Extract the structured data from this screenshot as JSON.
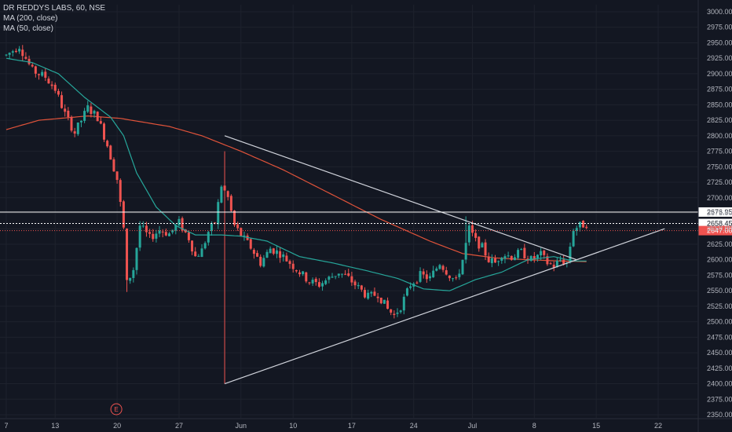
{
  "chart_title": "DR REDDYS LABS, 60, NSE",
  "indicators": [
    "MA (200, close)",
    "MA (50, close)"
  ],
  "colors": {
    "background": "#131722",
    "grid": "#1e222d",
    "up": "#26a69a",
    "down": "#ef5350",
    "ma200": "#e0533a",
    "ma50": "#26a69a",
    "trendline": "#d1d4dc",
    "level": "#ffffff",
    "price_tag": "#ef5350"
  },
  "event_marker": "E",
  "chart_data": {
    "type": "candlestick",
    "title": "DR REDDYS LABS, 60, NSE",
    "ylim": [
      2345,
      3010
    ],
    "y_ticks": [
      2350,
      2375,
      2400,
      2425,
      2450,
      2475,
      2500,
      2525,
      2550,
      2575,
      2600,
      2625,
      2650,
      2675,
      2700,
      2725,
      2750,
      2775,
      2800,
      2825,
      2850,
      2875,
      2900,
      2925,
      2950,
      2975,
      3000
    ],
    "x_ticks": [
      "7",
      "13",
      "20",
      "27",
      "Jun",
      "10",
      "17",
      "24",
      "Jul",
      "8",
      "15",
      "22"
    ],
    "grid": true,
    "price_levels": [
      {
        "label": "2676.95",
        "value": 2676.95,
        "style": "solid"
      },
      {
        "label": "2658.45",
        "value": 2658.45,
        "style": "dashed"
      },
      {
        "label": "2647.00",
        "value": 2647.0,
        "style": "current"
      }
    ],
    "price_path": [
      [
        0,
        2930
      ],
      [
        4,
        2945
      ],
      [
        8,
        2905
      ],
      [
        12,
        2895
      ],
      [
        15,
        2875
      ],
      [
        18,
        2835
      ],
      [
        21,
        2805
      ],
      [
        25,
        2845
      ],
      [
        28,
        2830
      ],
      [
        31,
        2785
      ],
      [
        34,
        2730
      ],
      [
        36,
        2650
      ],
      [
        37,
        2562
      ],
      [
        39,
        2585
      ],
      [
        41,
        2655
      ],
      [
        44,
        2635
      ],
      [
        47,
        2648
      ],
      [
        50,
        2642
      ],
      [
        53,
        2660
      ],
      [
        56,
        2635
      ],
      [
        58,
        2605
      ],
      [
        60,
        2615
      ],
      [
        62,
        2645
      ],
      [
        64,
        2660
      ],
      [
        66,
        2720
      ],
      [
        68,
        2700
      ],
      [
        70,
        2655
      ],
      [
        72,
        2640
      ],
      [
        75,
        2620
      ],
      [
        78,
        2595
      ],
      [
        81,
        2618
      ],
      [
        84,
        2610
      ],
      [
        87,
        2595
      ],
      [
        90,
        2580
      ],
      [
        93,
        2565
      ],
      [
        96,
        2560
      ],
      [
        99,
        2570
      ],
      [
        102,
        2580
      ],
      [
        105,
        2570
      ],
      [
        108,
        2555
      ],
      [
        111,
        2540
      ],
      [
        114,
        2545
      ],
      [
        117,
        2520
      ],
      [
        119,
        2510
      ],
      [
        121,
        2525
      ],
      [
        124,
        2560
      ],
      [
        127,
        2575
      ],
      [
        130,
        2570
      ],
      [
        133,
        2595
      ],
      [
        136,
        2575
      ],
      [
        138,
        2565
      ],
      [
        140,
        2600
      ],
      [
        142,
        2650
      ],
      [
        144,
        2630
      ],
      [
        146,
        2620
      ],
      [
        148,
        2600
      ],
      [
        150,
        2595
      ],
      [
        152,
        2610
      ],
      [
        155,
        2605
      ],
      [
        158,
        2612
      ],
      [
        161,
        2600
      ],
      [
        164,
        2608
      ],
      [
        166,
        2595
      ],
      [
        168,
        2590
      ],
      [
        170,
        2600
      ],
      [
        172,
        2595
      ],
      [
        174,
        2650
      ],
      [
        176,
        2655
      ],
      [
        178,
        2658
      ]
    ],
    "price_spikes": [
      {
        "bar": 67,
        "low": 2400
      },
      {
        "bar": 67,
        "high": 2775
      },
      {
        "bar": 37,
        "low": 2548
      },
      {
        "bar": 141,
        "high": 2670
      }
    ],
    "ma200": [
      [
        0,
        2810
      ],
      [
        10,
        2825
      ],
      [
        25,
        2832
      ],
      [
        35,
        2828
      ],
      [
        50,
        2815
      ],
      [
        60,
        2800
      ],
      [
        72,
        2775
      ],
      [
        85,
        2745
      ],
      [
        100,
        2705
      ],
      [
        115,
        2665
      ],
      [
        130,
        2630
      ],
      [
        140,
        2610
      ],
      [
        150,
        2603
      ],
      [
        160,
        2600
      ],
      [
        170,
        2598
      ],
      [
        178,
        2597
      ]
    ],
    "ma50": [
      [
        0,
        2925
      ],
      [
        8,
        2918
      ],
      [
        16,
        2900
      ],
      [
        24,
        2862
      ],
      [
        32,
        2830
      ],
      [
        36,
        2800
      ],
      [
        40,
        2740
      ],
      [
        46,
        2685
      ],
      [
        52,
        2655
      ],
      [
        58,
        2640
      ],
      [
        66,
        2640
      ],
      [
        72,
        2638
      ],
      [
        80,
        2630
      ],
      [
        90,
        2605
      ],
      [
        100,
        2595
      ],
      [
        110,
        2583
      ],
      [
        120,
        2570
      ],
      [
        128,
        2553
      ],
      [
        136,
        2550
      ],
      [
        144,
        2568
      ],
      [
        152,
        2580
      ],
      [
        160,
        2600
      ],
      [
        168,
        2605
      ],
      [
        174,
        2598
      ],
      [
        178,
        2598
      ]
    ],
    "trendlines": [
      {
        "from": [
          67,
          2800
        ],
        "to": [
          175,
          2600
        ]
      },
      {
        "from": [
          67,
          2400
        ],
        "to": [
          202,
          2650
        ]
      }
    ]
  }
}
